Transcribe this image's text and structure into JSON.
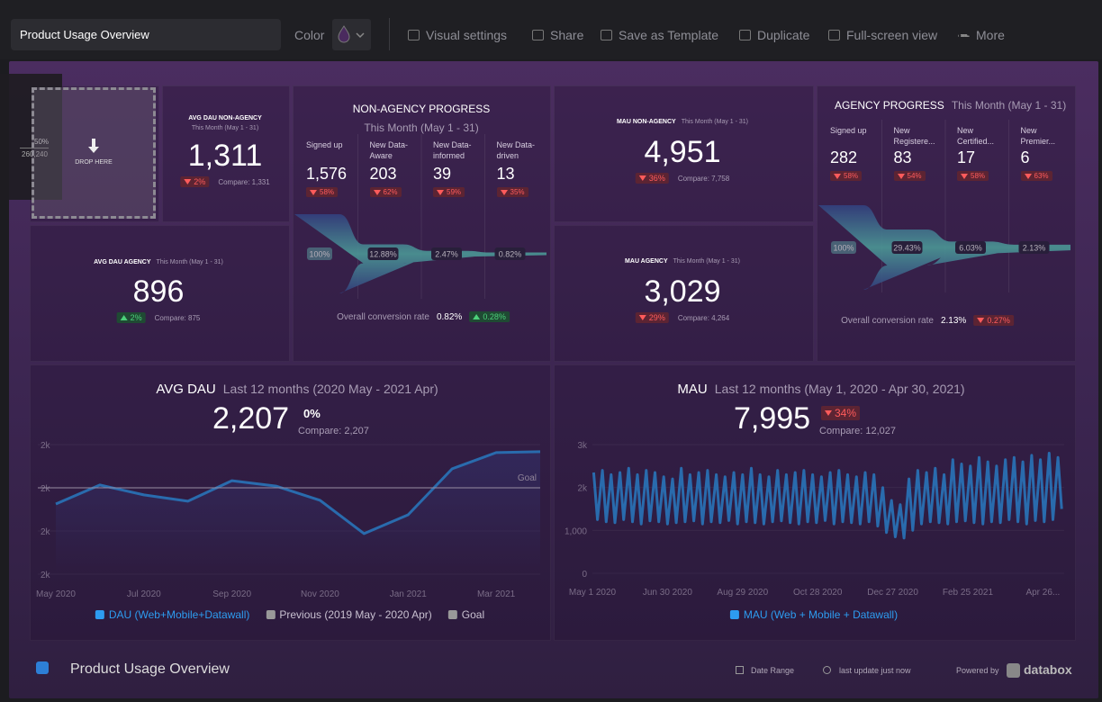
{
  "toolbar": {
    "title": "Product Usage Overview",
    "color_label": "Color",
    "actions": [
      "Visual settings",
      "Share",
      "Save as Template",
      "Duplicate",
      "Full-screen view",
      "More"
    ]
  },
  "drag": {
    "percent": "50%",
    "value": "260,240",
    "drop_label": "DROP HERE"
  },
  "kpis": [
    {
      "title": "AVG DAU NON-AGENCY",
      "period": "This Month (May 1 - 31)",
      "value": "1,311",
      "change": "2%",
      "trend": "down",
      "compare": "Compare: 1,331"
    },
    {
      "title": "AVG DAU AGENCY",
      "period": "This Month (May 1 - 31)",
      "value": "896",
      "change": "2%",
      "trend": "up",
      "compare": "Compare: 875"
    },
    {
      "title": "MAU NON-AGENCY",
      "period": "This Month (May 1 - 31)",
      "value": "4,951",
      "change": "36%",
      "trend": "down",
      "compare": "Compare: 7,758"
    },
    {
      "title": "MAU AGENCY",
      "period": "This Month (May 1 - 31)",
      "value": "3,029",
      "change": "29%",
      "trend": "down",
      "compare": "Compare: 4,264"
    }
  ],
  "funnels": [
    {
      "title": "NON-AGENCY PROGRESS",
      "period": "This Month (May 1 - 31)",
      "stages": [
        {
          "label": "Signed up",
          "value": "1,576",
          "change": "58%",
          "trend": "down"
        },
        {
          "label": "New Data-Aware",
          "value": "203",
          "change": "62%",
          "trend": "down"
        },
        {
          "label": "New Data-informed",
          "value": "39",
          "change": "59%",
          "trend": "down"
        },
        {
          "label": "New Data-driven",
          "value": "13",
          "change": "35%",
          "trend": "down"
        }
      ],
      "rates": [
        {
          "value": 100,
          "label": "100%"
        },
        {
          "value": 12.88,
          "label": "12.88%"
        },
        {
          "value": 2.47,
          "label": "2.47%"
        },
        {
          "value": 0.82,
          "label": "0.82%"
        }
      ],
      "conversion_label": "Overall conversion rate",
      "conversion": "0.82%",
      "conversion_change": "0.28%",
      "conversion_trend": "up"
    },
    {
      "title": "AGENCY PROGRESS",
      "period": "This Month (May 1 - 31)",
      "stages": [
        {
          "label": "Signed up",
          "value": "282",
          "change": "58%",
          "trend": "down"
        },
        {
          "label": "New Registere...",
          "value": "83",
          "change": "54%",
          "trend": "down"
        },
        {
          "label": "New Certified...",
          "value": "17",
          "change": "58%",
          "trend": "down"
        },
        {
          "label": "New Premier...",
          "value": "6",
          "change": "63%",
          "trend": "down"
        }
      ],
      "rates": [
        {
          "value": 100,
          "label": "100%"
        },
        {
          "value": 29.43,
          "label": "29.43%"
        },
        {
          "value": 6.03,
          "label": "6.03%"
        },
        {
          "value": 2.13,
          "label": "2.13%"
        }
      ],
      "conversion_label": "Overall conversion rate",
      "conversion": "2.13%",
      "conversion_change": "0.27%",
      "conversion_trend": "down"
    }
  ],
  "charts": [
    {
      "type": "line",
      "title": "AVG DAU",
      "period": "Last 12 months (2020 May - 2021 Apr)",
      "value": "2,207",
      "change": "0%",
      "trend": "flat",
      "compare": "Compare: 2,207",
      "categories": [
        "May 2020",
        null,
        "Jul 2020",
        null,
        "Sep 2020",
        null,
        "Nov 2020",
        null,
        "Jan 2021",
        null,
        "Mar 2021",
        null
      ],
      "series": [
        {
          "name": "DAU (Web+Mobile+Datawall)",
          "color": "#2d9cf0",
          "values": [
            1925,
            2013,
            1967,
            1938,
            2033,
            2008,
            1942,
            1788,
            1875,
            2088,
            2163,
            2167
          ]
        }
      ],
      "previous_label": "Previous (2019 May - 2020 Apr)",
      "goal": {
        "value": 2000,
        "label": "Goal"
      },
      "ylim": [
        1600,
        2200
      ],
      "yticks": [
        {
          "value": 1600,
          "label": "2k"
        },
        {
          "value": 1800,
          "label": "2k"
        },
        {
          "value": 2000,
          "label": "2k"
        },
        {
          "value": 2200,
          "label": "2k"
        }
      ],
      "grid": true
    },
    {
      "type": "line",
      "title": "MAU",
      "period": "Last 12 months (May 1, 2020 - Apr 30, 2021)",
      "value": "7,995",
      "change": "34%",
      "trend": "down",
      "compare": "Compare: 12,027",
      "x": [
        1,
        4,
        8,
        11,
        15,
        18,
        22,
        25,
        29,
        32,
        36,
        39,
        43,
        46,
        50,
        53,
        57,
        60,
        64,
        67,
        71,
        74,
        78,
        81,
        85,
        88,
        92,
        95,
        99,
        102,
        106,
        109,
        113,
        116,
        120,
        123,
        127,
        130,
        134,
        137,
        141,
        144,
        148,
        151,
        155,
        158,
        162,
        165,
        169,
        172,
        176,
        179,
        183,
        186,
        190,
        193,
        197,
        200,
        204,
        207,
        211,
        214,
        218,
        221,
        225,
        228,
        232,
        235,
        239,
        242,
        246,
        249,
        253,
        256,
        260,
        263,
        267,
        270,
        274,
        277,
        281,
        284,
        288,
        291,
        295,
        298,
        302,
        305,
        309,
        312,
        316,
        319,
        323,
        326,
        330,
        333,
        337,
        340,
        344,
        347,
        351,
        354,
        358,
        361,
        365,
        368,
        372,
        375
      ],
      "series": [
        {
          "name": "MAU (Web + Mobile + Datawall)",
          "color": "#2d9cf0",
          "values": [
            2350,
            1250,
            2400,
            1200,
            2300,
            1180,
            2350,
            1250,
            2450,
            1200,
            2300,
            1150,
            2400,
            1220,
            2350,
            1200,
            2250,
            1150,
            2200,
            1180,
            2450,
            1200,
            2300,
            1220,
            2350,
            1150,
            2400,
            1200,
            2300,
            1180,
            2250,
            1230,
            2350,
            1150,
            2300,
            1200,
            2450,
            1180,
            2300,
            1150,
            2250,
            1200,
            2400,
            1220,
            2300,
            1180,
            2350,
            1150,
            2400,
            1200,
            2300,
            1180,
            2250,
            1230,
            2350,
            1150,
            2400,
            1200,
            2300,
            1180,
            2250,
            1150,
            2350,
            1200,
            2300,
            1100,
            2000,
            950,
            1700,
            850,
            1600,
            820,
            2200,
            1000,
            2400,
            1150,
            2350,
            1200,
            2450,
            1180,
            2300,
            1150,
            2650,
            1200,
            2550,
            1220,
            2500,
            1180,
            2700,
            1150,
            2600,
            1200,
            2500,
            1180,
            2650,
            1250,
            2700,
            1200,
            2600,
            1150,
            2750,
            1230,
            2650,
            1200,
            2800,
            1250,
            2700,
            1500
          ]
        }
      ],
      "xlim": [
        0,
        377
      ],
      "xticks": [
        {
          "value": 0,
          "label": "May 1 2020"
        },
        {
          "value": 60,
          "label": "Jun 30 2020"
        },
        {
          "value": 120,
          "label": "Aug 29 2020"
        },
        {
          "value": 180,
          "label": "Oct 28 2020"
        },
        {
          "value": 240,
          "label": "Dec 27 2020"
        },
        {
          "value": 300,
          "label": "Feb 25 2021"
        },
        {
          "value": 360,
          "label": "Apr 26..."
        }
      ],
      "ylim": [
        0,
        3000
      ],
      "yticks": [
        0,
        {
          "value": 1000,
          "label": "1,000"
        },
        {
          "value": 2000,
          "label": "2k"
        },
        {
          "value": 3000,
          "label": "3k"
        }
      ],
      "grid": true
    }
  ],
  "footer": {
    "title": "Product Usage Overview",
    "date_range": "Date Range",
    "last_update": "last update just now",
    "powered_by": "Powered by",
    "brand": "databox"
  }
}
